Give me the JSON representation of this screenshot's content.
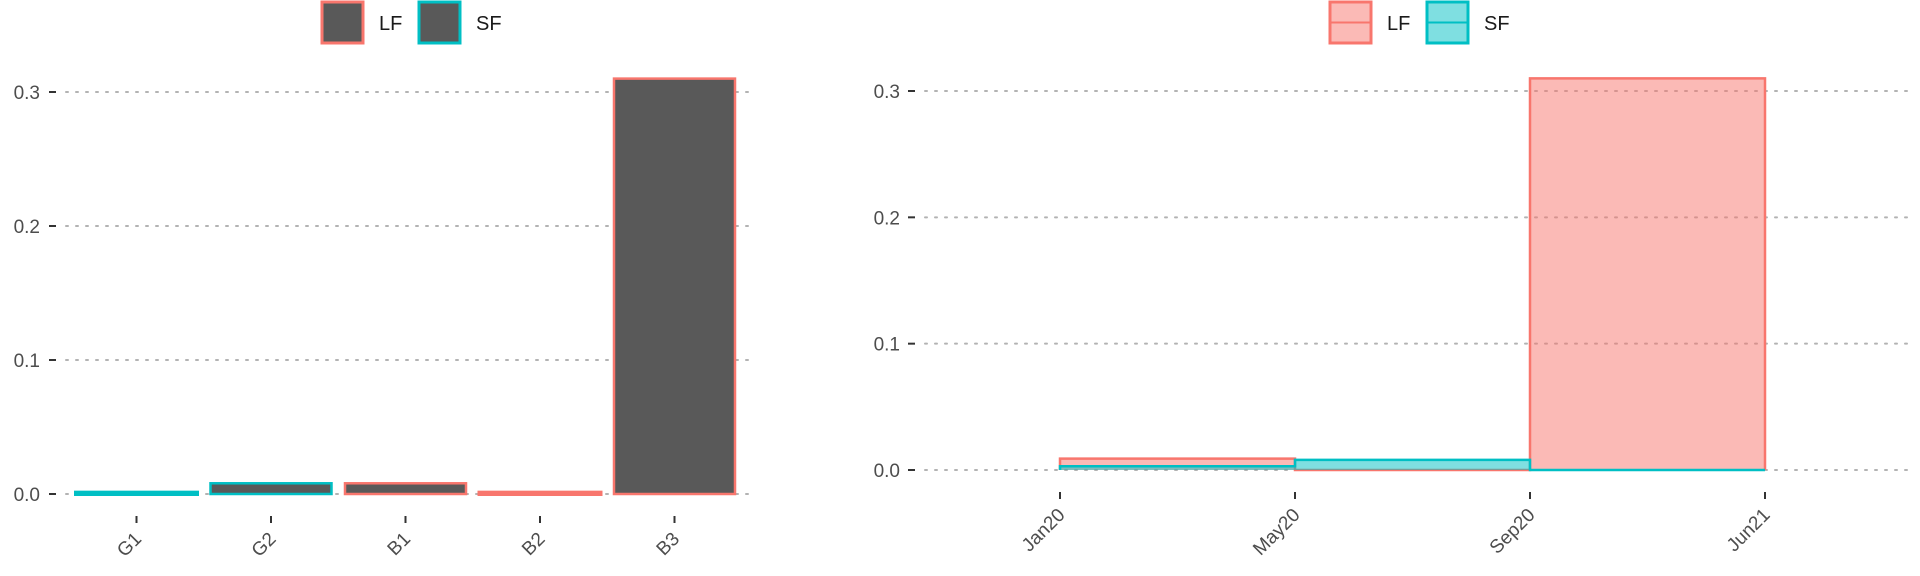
{
  "colors": {
    "LF": "#F8766D",
    "SF": "#00BFC4",
    "bar_fill": "#595959",
    "LF_area": "#F8766D",
    "SF_area": "#00BFC4"
  },
  "chart_data": [
    {
      "type": "bar",
      "legend": {
        "position": "top",
        "entries": [
          "LF",
          "SF"
        ]
      },
      "categories": [
        "G1",
        "G2",
        "B1",
        "B2",
        "B3"
      ],
      "series_by_category": [
        "SF",
        "SF",
        "LF",
        "LF",
        "LF"
      ],
      "values": [
        0.001,
        0.008,
        0.008,
        0.001,
        0.31
      ],
      "ylim": [
        0,
        0.32
      ],
      "yticks": [
        0.0,
        0.1,
        0.2,
        0.3
      ],
      "ytick_labels": [
        "0.0",
        "0.1",
        "0.2",
        "0.3"
      ],
      "grid": "horizontal dotted",
      "title": "",
      "xlabel": "",
      "ylabel": ""
    },
    {
      "type": "area",
      "legend": {
        "position": "top",
        "entries": [
          "LF",
          "SF"
        ]
      },
      "xtick_labels": [
        "Jan20",
        "May20",
        "Sep20",
        "Jun21"
      ],
      "series": [
        {
          "name": "LF",
          "steps": [
            {
              "from": "Jan20",
              "to": "May20",
              "value": 0.009
            },
            {
              "from": "May20",
              "to": "Sep20",
              "value": 0.0
            },
            {
              "from": "Sep20",
              "to": "Jun21",
              "value": 0.31
            }
          ]
        },
        {
          "name": "SF",
          "steps": [
            {
              "from": "Jan20",
              "to": "May20",
              "value": 0.003
            },
            {
              "from": "May20",
              "to": "Sep20",
              "value": 0.008
            },
            {
              "from": "Sep20",
              "to": "Jun21",
              "value": 0.0
            }
          ]
        }
      ],
      "ylim": [
        0,
        0.32
      ],
      "yticks": [
        0.0,
        0.1,
        0.2,
        0.3
      ],
      "ytick_labels": [
        "0.0",
        "0.1",
        "0.2",
        "0.3"
      ],
      "grid": "horizontal dotted",
      "title": "",
      "xlabel": "",
      "ylabel": ""
    }
  ]
}
